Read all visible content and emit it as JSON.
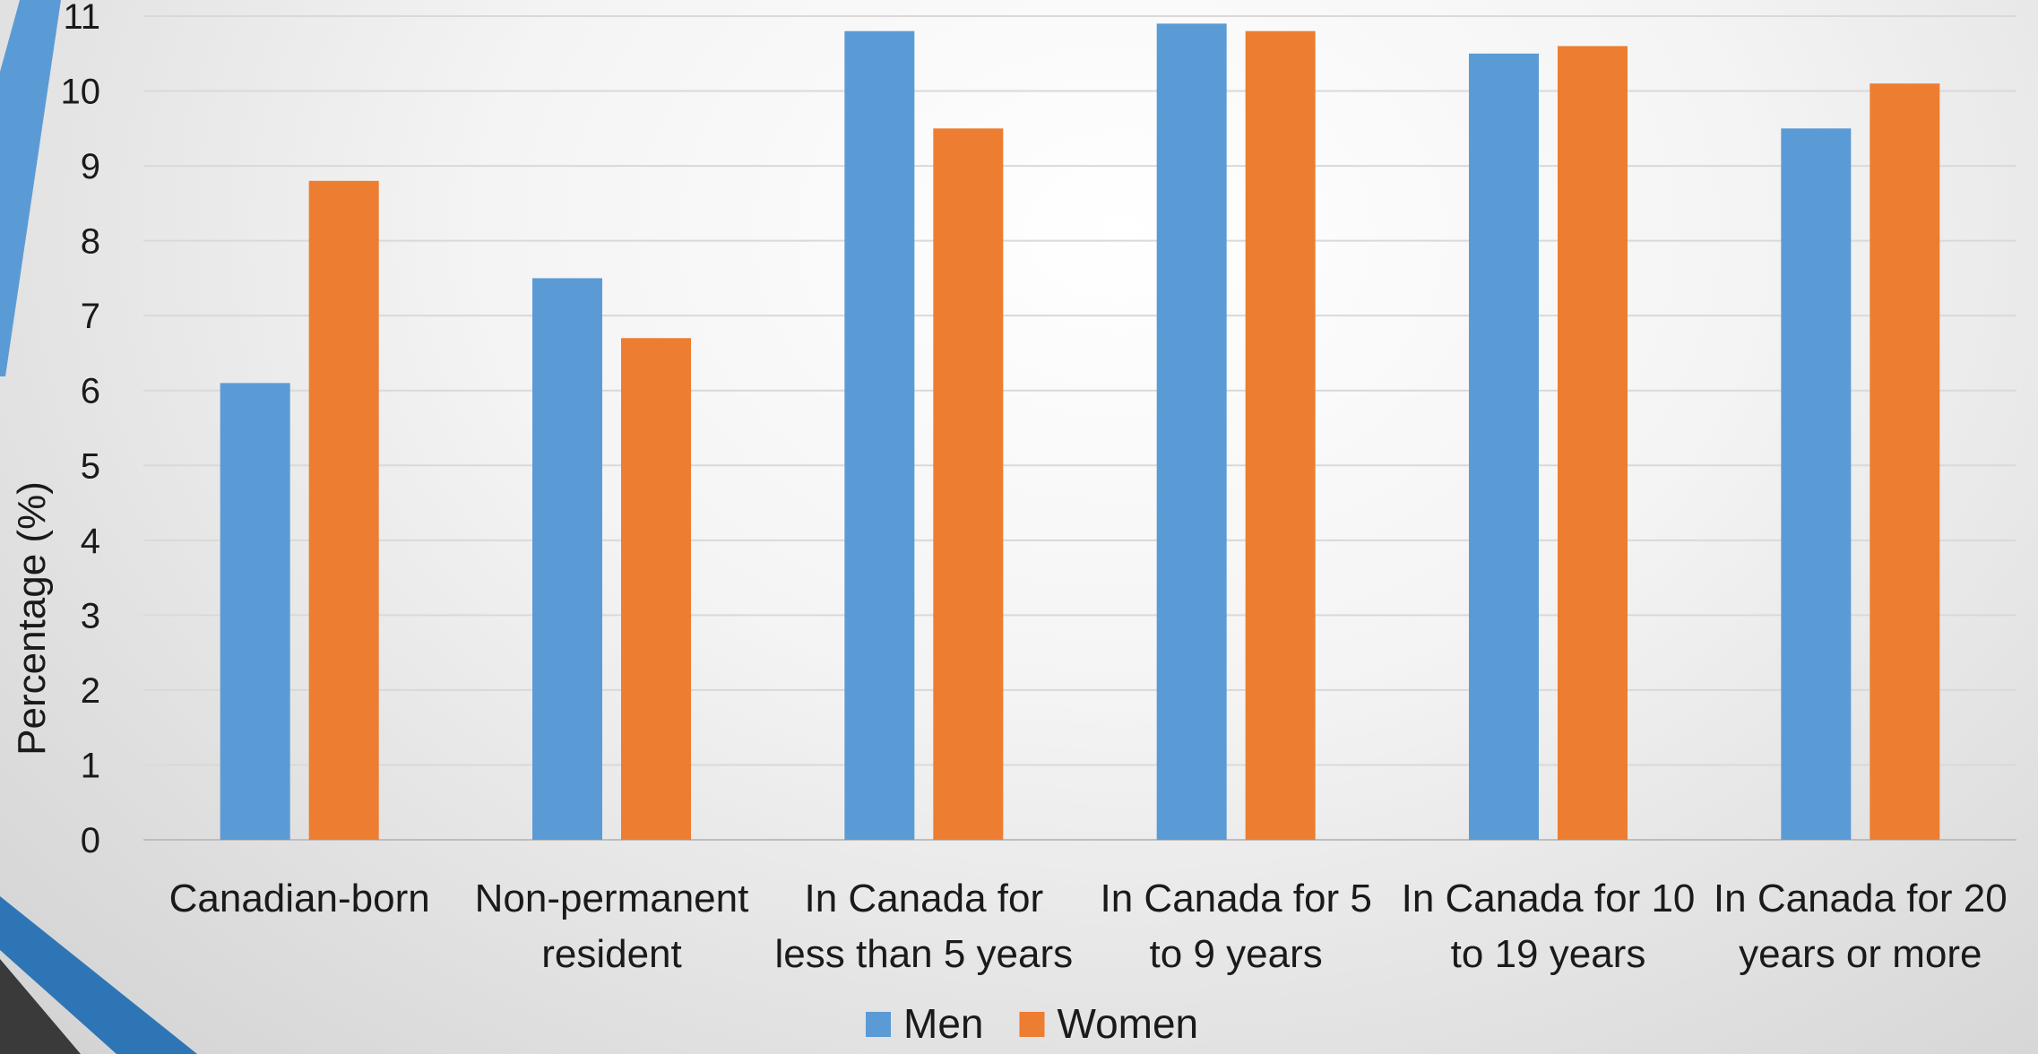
{
  "chart_data": {
    "type": "bar",
    "title": "",
    "xlabel": "",
    "ylabel": "Percentage (%)",
    "ylim": [
      0,
      11
    ],
    "y_ticks": [
      0,
      1,
      2,
      3,
      4,
      5,
      6,
      7,
      8,
      9,
      10,
      11
    ],
    "grid": true,
    "legend_position": "bottom",
    "categories": [
      [
        "Canadian-born"
      ],
      [
        "Non-permanent",
        "resident"
      ],
      [
        "In Canada for",
        "less than 5 years"
      ],
      [
        "In Canada for 5",
        "to 9 years"
      ],
      [
        "In Canada for 10",
        "to 19 years"
      ],
      [
        "In Canada for 20",
        "years or more"
      ]
    ],
    "series": [
      {
        "name": "Men",
        "color": "#5b9bd5",
        "values": [
          6.1,
          7.5,
          10.8,
          10.9,
          10.5,
          9.5
        ]
      },
      {
        "name": "Women",
        "color": "#ed7d31",
        "values": [
          8.8,
          6.7,
          9.5,
          10.8,
          10.6,
          10.1
        ]
      }
    ]
  }
}
